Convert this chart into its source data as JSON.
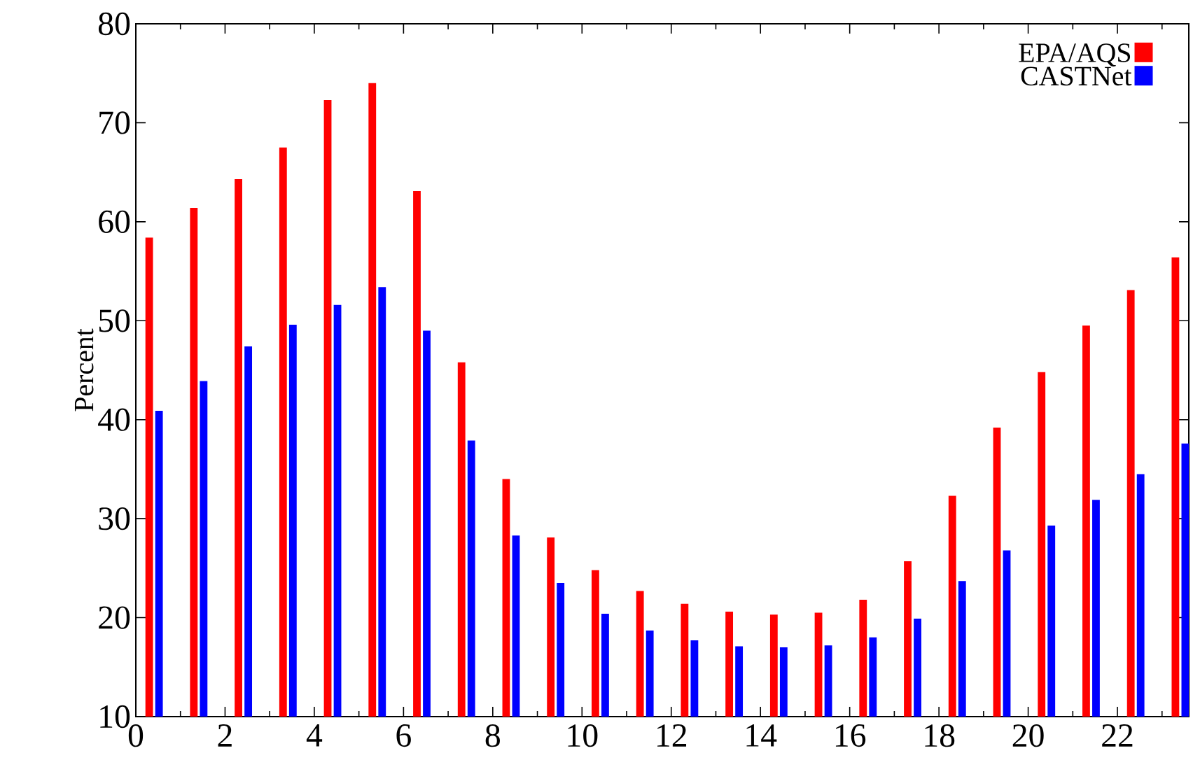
{
  "chart_data": {
    "type": "bar",
    "ylabel": "Percent",
    "x": [
      0,
      1,
      2,
      3,
      4,
      5,
      6,
      7,
      8,
      9,
      10,
      11,
      12,
      13,
      14,
      15,
      16,
      17,
      18,
      19,
      20,
      21,
      22,
      23
    ],
    "series": [
      {
        "name": "EPA/AQS",
        "color": "#ff0000",
        "values": [
          58.4,
          61.4,
          64.3,
          67.5,
          72.3,
          74.0,
          63.1,
          45.8,
          34.0,
          28.1,
          24.8,
          22.7,
          21.4,
          20.6,
          20.3,
          20.5,
          21.8,
          25.7,
          32.3,
          39.2,
          44.8,
          49.5,
          53.1,
          56.4
        ]
      },
      {
        "name": "CASTNet",
        "color": "#0000ff",
        "values": [
          40.9,
          43.9,
          47.4,
          49.6,
          51.6,
          53.4,
          49.0,
          37.9,
          28.3,
          23.5,
          20.4,
          18.7,
          17.7,
          17.1,
          17.0,
          17.2,
          18.0,
          19.9,
          23.7,
          26.8,
          29.3,
          31.9,
          34.5,
          37.6
        ]
      }
    ],
    "xlim": [
      0,
      23.6
    ],
    "xticks": [
      0,
      {
        "value": 1,
        "label": null
      },
      2,
      {
        "value": 3,
        "label": null
      },
      4,
      {
        "value": 5,
        "label": null
      },
      6,
      {
        "value": 7,
        "label": null
      },
      8,
      {
        "value": 9,
        "label": null
      },
      10,
      {
        "value": 11,
        "label": null
      },
      12,
      {
        "value": 13,
        "label": null
      },
      14,
      {
        "value": 15,
        "label": null
      },
      16,
      {
        "value": 17,
        "label": null
      },
      18,
      {
        "value": 19,
        "label": null
      },
      20,
      {
        "value": 21,
        "label": null
      },
      22,
      {
        "value": 23,
        "label": null
      }
    ],
    "ylim": [
      10,
      80
    ],
    "yticks": [
      10,
      20,
      30,
      40,
      50,
      60,
      70,
      80
    ],
    "grid": false,
    "legend": "top right"
  }
}
